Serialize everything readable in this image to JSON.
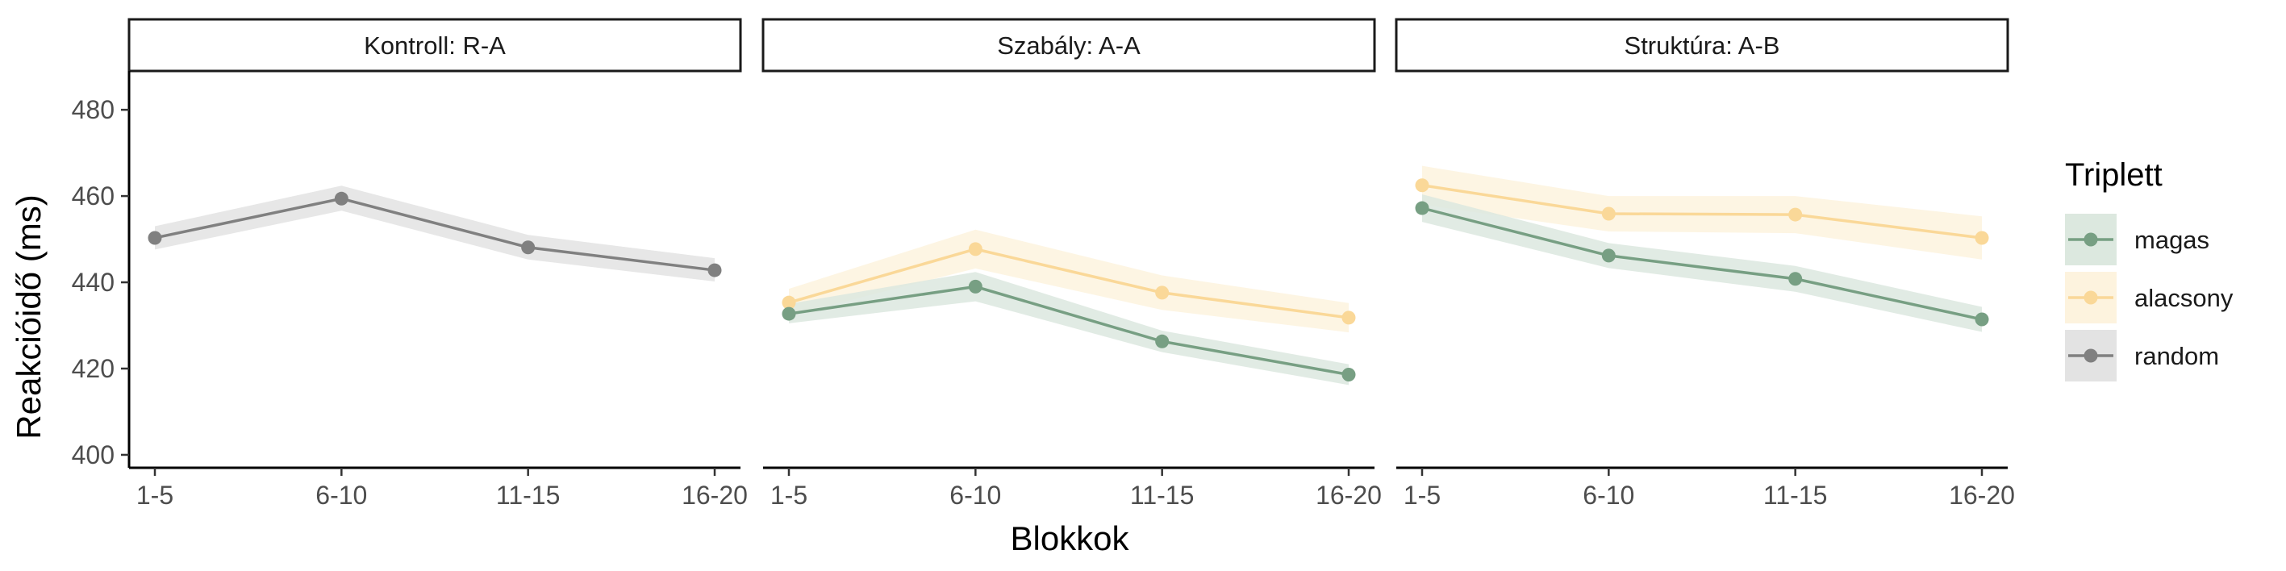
{
  "chart_data": {
    "type": "line",
    "xlabel": "Blokkok",
    "ylabel": "Reakcióidő (ms)",
    "categories": [
      "1-5",
      "6-10",
      "11-15",
      "16-20"
    ],
    "ylim": [
      397,
      489
    ],
    "yticks": [
      400,
      420,
      440,
      460,
      480
    ],
    "legend": {
      "title": "Triplett",
      "position": "right",
      "entries": [
        {
          "key": "magas",
          "label": "magas",
          "color": "#779F83"
        },
        {
          "key": "alacsony",
          "label": "alacsony",
          "color": "#FAD898"
        },
        {
          "key": "random",
          "label": "random",
          "color": "#808080"
        }
      ]
    },
    "colors": {
      "magas": "#779F83",
      "magas_band": "#DCE8DF",
      "alacsony": "#FAD898",
      "alacsony_band": "#FDF3DE",
      "random": "#808080",
      "random_band": "#E3E3E3"
    },
    "panels": [
      {
        "title": "Kontroll: R-A",
        "series": [
          {
            "name": "random",
            "values": [
              450.3,
              459.4,
              448.1,
              442.8
            ],
            "lower": [
              447.6,
              456.6,
              445.3,
              440.2
            ],
            "upper": [
              453.0,
              462.4,
              451.0,
              445.6
            ]
          }
        ]
      },
      {
        "title": "Szabály: A-A",
        "series": [
          {
            "name": "alacsony",
            "values": [
              435.3,
              447.7,
              437.6,
              431.8
            ],
            "lower": [
              432.3,
              443.2,
              433.6,
              428.4
            ],
            "upper": [
              438.5,
              452.2,
              441.6,
              435.2
            ]
          },
          {
            "name": "magas",
            "values": [
              432.7,
              439.0,
              426.3,
              418.6
            ],
            "lower": [
              430.5,
              435.6,
              423.8,
              416.2
            ],
            "upper": [
              435.0,
              442.4,
              428.8,
              421.0
            ]
          }
        ]
      },
      {
        "title": "Struktúra: A-B",
        "series": [
          {
            "name": "alacsony",
            "values": [
              462.5,
              455.9,
              455.7,
              450.3
            ],
            "lower": [
              458.0,
              451.8,
              451.4,
              445.3
            ],
            "upper": [
              467.0,
              460.0,
              460.0,
              455.3
            ]
          },
          {
            "name": "magas",
            "values": [
              457.2,
              446.2,
              440.8,
              431.4
            ],
            "lower": [
              454.0,
              443.3,
              437.8,
              428.5
            ],
            "upper": [
              460.4,
              449.1,
              443.8,
              434.3
            ]
          }
        ]
      }
    ]
  }
}
